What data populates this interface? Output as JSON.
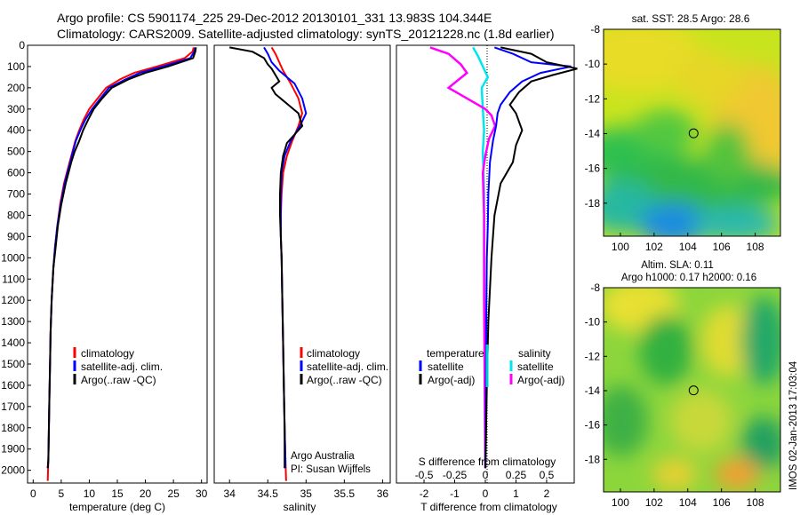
{
  "header": {
    "line1": "Argo profile: CS 5901174_225 29-Dec-2012 20130101_331 13.983S 104.344E",
    "line2": "Climatology: CARS2009. Satellite-adjusted climatology: synTS_20121228.nc (1.8d earlier)"
  },
  "colors": {
    "climatology": "#ff0000",
    "satellite": "#0000ff",
    "argo": "#000000",
    "sat_salinity": "#00e5ee",
    "argo_salinity_diff": "#ff00ff"
  },
  "chart_data": [
    {
      "id": "temperature",
      "type": "line",
      "xlabel": "temperature (deg C)",
      "xlim": [
        -1,
        31
      ],
      "ylim": [
        2060,
        0
      ],
      "xticks": [
        "0",
        "5",
        "10",
        "15",
        "20",
        "25",
        "30"
      ],
      "xtick_values": [
        0,
        5,
        10,
        15,
        20,
        25,
        30
      ],
      "yticks": [
        "0",
        "100",
        "200",
        "300",
        "400",
        "500",
        "600",
        "700",
        "800",
        "900",
        "1000",
        "1100",
        "1200",
        "1300",
        "1400",
        "1500",
        "1600",
        "1700",
        "1800",
        "1900",
        "2000"
      ],
      "ytick_values": [
        0,
        100,
        200,
        300,
        400,
        500,
        600,
        700,
        800,
        900,
        1000,
        1100,
        1200,
        1300,
        1400,
        1500,
        1600,
        1700,
        1800,
        1900,
        2000
      ],
      "legend": [
        "climatology",
        "satellite-adj. clim.",
        "Argo(..raw -QC)"
      ],
      "legend_position": "center-right",
      "series": [
        {
          "name": "climatology",
          "color": "#ff0000",
          "x": [
            28.6,
            28.4,
            27.0,
            22.0,
            18.0,
            15.5,
            13.0,
            11.5,
            10.0,
            9.0,
            8.2,
            7.5,
            7.0,
            6.5,
            5.5,
            4.8,
            4.3,
            3.9,
            3.6,
            3.3,
            3.1,
            3.0,
            2.9,
            2.8,
            2.7,
            2.6
          ],
          "y": [
            10,
            30,
            60,
            100,
            130,
            160,
            200,
            250,
            300,
            350,
            400,
            450,
            500,
            550,
            650,
            750,
            850,
            950,
            1050,
            1200,
            1350,
            1500,
            1650,
            1800,
            1950,
            2050
          ]
        },
        {
          "name": "satellite-adj. clim.",
          "color": "#0000ff",
          "x": [
            28.9,
            28.7,
            28.0,
            23.0,
            19.0,
            16.5,
            13.5,
            12.0,
            10.5,
            9.3,
            8.4,
            7.6,
            7.1,
            6.6,
            5.6,
            4.9,
            4.3,
            3.9,
            3.6,
            3.3,
            3.1,
            3.0,
            2.9,
            2.8,
            2.7,
            2.6
          ],
          "y": [
            10,
            30,
            60,
            100,
            130,
            160,
            200,
            250,
            300,
            350,
            400,
            450,
            500,
            550,
            650,
            750,
            850,
            950,
            1050,
            1200,
            1350,
            1500,
            1650,
            1800,
            1950,
            1990
          ]
        },
        {
          "name": "Argo(..raw -QC)",
          "color": "#000000",
          "x": [
            29.0,
            28.9,
            28.5,
            24.0,
            20.0,
            17.0,
            14.0,
            12.3,
            10.8,
            9.8,
            8.9,
            8.2,
            7.4,
            6.8,
            5.8,
            5.0,
            4.4,
            4.0,
            3.6,
            3.3,
            3.1,
            3.0,
            2.9,
            2.8,
            2.7,
            2.6
          ],
          "y": [
            10,
            30,
            60,
            100,
            130,
            160,
            200,
            250,
            300,
            350,
            400,
            450,
            500,
            550,
            650,
            750,
            850,
            950,
            1050,
            1200,
            1350,
            1500,
            1650,
            1800,
            1950,
            1990
          ]
        }
      ]
    },
    {
      "id": "salinity",
      "type": "line",
      "xlabel": "salinity",
      "xlim": [
        33.8,
        36.1
      ],
      "ylim": [
        2060,
        0
      ],
      "xticks": [
        "34",
        "34.5",
        "35",
        "35.5",
        "36"
      ],
      "xtick_values": [
        34,
        34.5,
        35,
        35.5,
        36
      ],
      "legend": [
        "climatology",
        "satellite-adj. clim.",
        "Argo(..raw -QC)"
      ],
      "legend_position": "center-right",
      "annotation": [
        "Argo Australia",
        "PI: Susan Wijffels"
      ],
      "series": [
        {
          "name": "climatology",
          "color": "#ff0000",
          "x": [
            34.55,
            34.6,
            34.65,
            34.7,
            34.8,
            34.9,
            34.95,
            34.9,
            34.82,
            34.75,
            34.7,
            34.68,
            34.67,
            34.67,
            34.68,
            34.69,
            34.7,
            34.71,
            34.72,
            34.73,
            34.74
          ],
          "y": [
            10,
            40,
            80,
            120,
            180,
            250,
            320,
            380,
            450,
            520,
            600,
            700,
            800,
            900,
            1000,
            1200,
            1400,
            1600,
            1800,
            1950,
            2050
          ]
        },
        {
          "name": "satellite-adj. clim.",
          "color": "#0000ff",
          "x": [
            34.45,
            34.5,
            34.55,
            34.65,
            34.85,
            34.95,
            35.0,
            34.92,
            34.8,
            34.72,
            34.68,
            34.67,
            34.67,
            34.67,
            34.68,
            34.69,
            34.7,
            34.71,
            34.72,
            34.73,
            34.73
          ],
          "y": [
            10,
            40,
            80,
            120,
            180,
            250,
            320,
            380,
            450,
            520,
            600,
            700,
            800,
            900,
            1000,
            1200,
            1400,
            1600,
            1800,
            1950,
            1990
          ]
        },
        {
          "name": "Argo(..raw -QC)",
          "color": "#000000",
          "x": [
            34.0,
            34.3,
            34.45,
            34.5,
            34.55,
            34.6,
            34.65,
            34.55,
            34.6,
            34.7,
            34.8,
            34.9,
            34.95,
            34.85,
            34.75,
            34.7,
            34.67,
            34.66,
            34.66,
            34.67,
            34.68,
            34.69,
            34.7,
            34.71,
            34.72,
            34.72
          ],
          "y": [
            10,
            30,
            60,
            90,
            110,
            140,
            170,
            200,
            230,
            260,
            290,
            320,
            380,
            420,
            460,
            520,
            600,
            700,
            800,
            900,
            1000,
            1200,
            1400,
            1600,
            1800,
            1990
          ]
        }
      ]
    },
    {
      "id": "difference",
      "type": "line",
      "xlabel": "T difference from climatology",
      "xlabel_top": "S difference from climatology",
      "xlim": [
        -2.9,
        2.9
      ],
      "ylim": [
        2060,
        0
      ],
      "xticks": [
        "-2",
        "-1",
        "0",
        "1",
        "2"
      ],
      "xtick_values": [
        -2,
        -1,
        0,
        1,
        2
      ],
      "sticks": [
        "-0.5",
        "-0.25",
        "0",
        "0.25",
        "0.5"
      ],
      "stick_values": [
        -0.5,
        -0.25,
        0,
        0.25,
        0.5
      ],
      "legend_left_title": "temperature",
      "legend_right_title": "salinity",
      "legend_left": [
        "satellite",
        "Argo(-adj)"
      ],
      "legend_right": [
        "satellite",
        "Argo(-adj)"
      ],
      "series": [
        {
          "name": "satellite",
          "color": "#0000ff",
          "x": [
            0.3,
            0.9,
            1.5,
            2.8,
            1.8,
            1.2,
            0.8,
            0.5,
            0.4,
            0.35,
            0.25,
            0.15,
            0.1,
            0.08,
            0.05,
            0.03,
            0.02,
            0.01,
            0.0
          ],
          "y": [
            10,
            40,
            80,
            100,
            130,
            170,
            220,
            280,
            320,
            380,
            450,
            550,
            700,
            850,
            1000,
            1300,
            1600,
            1850,
            1990
          ]
        },
        {
          "name": "Argo(-adj)",
          "color": "#000000",
          "x": [
            0.5,
            1.5,
            2.0,
            3.0,
            2.2,
            1.5,
            1.1,
            0.8,
            1.0,
            1.2,
            1.0,
            0.9,
            0.5,
            0.3,
            0.2,
            0.1,
            0.05,
            0.02,
            0.0
          ],
          "y": [
            10,
            40,
            80,
            110,
            140,
            170,
            220,
            280,
            320,
            400,
            470,
            550,
            650,
            800,
            1000,
            1300,
            1600,
            1850,
            1990
          ]
        }
      ],
      "salinity_series": [
        {
          "name": "satellite",
          "color": "#00e5ee",
          "x": [
            -0.1,
            -0.06,
            -0.02,
            0.02,
            -0.03,
            -0.02,
            -0.01,
            -0.02,
            -0.01,
            -0.01,
            -0.005,
            0.0
          ],
          "y": [
            10,
            50,
            100,
            150,
            200,
            300,
            400,
            500,
            700,
            1000,
            1500,
            1990
          ]
        },
        {
          "name": "Argo(-adj)",
          "color": "#ff00ff",
          "x": [
            -0.45,
            -0.3,
            -0.2,
            -0.15,
            -0.3,
            -0.12,
            0.0,
            0.05,
            0.08,
            0.03,
            0.0,
            -0.02,
            -0.01,
            -0.01,
            0.0
          ],
          "y": [
            10,
            40,
            90,
            130,
            200,
            260,
            300,
            330,
            380,
            440,
            520,
            600,
            800,
            1200,
            1990
          ]
        }
      ]
    },
    {
      "id": "sst-map",
      "type": "heatmap",
      "title": "sat. SST: 28.5  Argo: 28.6",
      "xticks": [
        "100",
        "102",
        "104",
        "106",
        "108"
      ],
      "xtick_values": [
        100,
        102,
        104,
        106,
        108
      ],
      "yticks": [
        "-8",
        "-10",
        "-12",
        "-14",
        "-16",
        "-18"
      ],
      "ytick_values": [
        -8,
        -10,
        -12,
        -14,
        -16,
        -18
      ],
      "xlim": [
        99.0,
        109.5
      ],
      "ylim": [
        -19.9,
        -8.0
      ],
      "marker": {
        "lon": 104.344,
        "lat": -13.983
      }
    },
    {
      "id": "sla-map",
      "type": "heatmap",
      "title": "Altim. SLA: 0.11",
      "subtitle": "Argo h1000: 0.17 h2000: 0.16",
      "xticks": [
        "100",
        "102",
        "104",
        "106",
        "108"
      ],
      "xtick_values": [
        100,
        102,
        104,
        106,
        108
      ],
      "yticks": [
        "-8",
        "-10",
        "-12",
        "-14",
        "-16",
        "-18"
      ],
      "ytick_values": [
        -8,
        -10,
        -12,
        -14,
        -16,
        -18
      ],
      "xlim": [
        99.0,
        109.5
      ],
      "ylim": [
        -19.9,
        -8.0
      ],
      "marker": {
        "lon": 104.344,
        "lat": -13.983
      }
    }
  ],
  "stamp": "IMOS 02-Jan-2013 17:03:04"
}
